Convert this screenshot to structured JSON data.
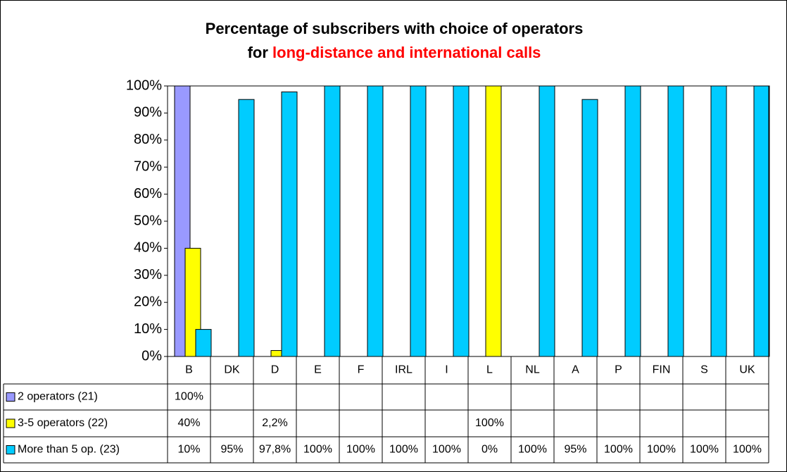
{
  "chart_data": {
    "type": "bar",
    "title": {
      "line1": "Percentage of subscribers with choice of operators",
      "line2_lead": "for",
      "line2_highlight": "long-distance and international calls"
    },
    "categories": [
      "B",
      "DK",
      "D",
      "E",
      "F",
      "IRL",
      "I",
      "L",
      "NL",
      "A",
      "P",
      "FIN",
      "S",
      "UK"
    ],
    "series": [
      {
        "name": "2 operators (21)",
        "color": "#9999ff",
        "values": [
          100,
          null,
          null,
          null,
          null,
          null,
          null,
          null,
          null,
          null,
          null,
          null,
          null,
          null
        ],
        "value_labels": [
          "100%",
          null,
          null,
          null,
          null,
          null,
          null,
          null,
          null,
          null,
          null,
          null,
          null,
          null
        ]
      },
      {
        "name": "3-5 operators (22)",
        "color": "#ffff00",
        "values": [
          40,
          null,
          2.2,
          null,
          null,
          null,
          null,
          100,
          null,
          null,
          null,
          null,
          null,
          null
        ],
        "value_labels": [
          "40%",
          null,
          "2,2%",
          null,
          null,
          null,
          null,
          "100%",
          null,
          null,
          null,
          null,
          null,
          null
        ]
      },
      {
        "name": "More than 5 op. (23)",
        "color": "#00ccff",
        "values": [
          10,
          95,
          97.8,
          100,
          100,
          100,
          100,
          0,
          100,
          95,
          100,
          100,
          100,
          100
        ],
        "value_labels": [
          "10%",
          "95%",
          "97,8%",
          "100%",
          "100%",
          "100%",
          "100%",
          "0%",
          "100%",
          "95%",
          "100%",
          "100%",
          "100%",
          "100%"
        ]
      }
    ],
    "ylim": [
      0,
      100
    ],
    "yticks": [
      {
        "value": 0,
        "label": "0%"
      },
      {
        "value": 10,
        "label": "10%"
      },
      {
        "value": 20,
        "label": "20%"
      },
      {
        "value": 30,
        "label": "30%"
      },
      {
        "value": 40,
        "label": "40%"
      },
      {
        "value": 50,
        "label": "50%"
      },
      {
        "value": 60,
        "label": "60%"
      },
      {
        "value": 70,
        "label": "70%"
      },
      {
        "value": 80,
        "label": "80%"
      },
      {
        "value": 90,
        "label": "90%"
      },
      {
        "value": 100,
        "label": "100%"
      }
    ],
    "grid": false
  }
}
